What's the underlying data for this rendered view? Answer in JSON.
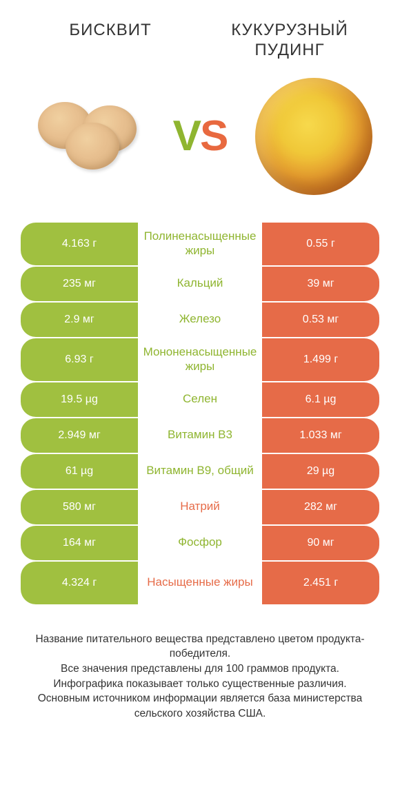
{
  "header": {
    "left_title": "БИСКВИТ",
    "right_title": "КУКУРУЗНЫЙ ПУДИНГ",
    "vs_v": "V",
    "vs_s": "S"
  },
  "colors": {
    "green": "#a0c040",
    "red": "#e66b48",
    "mid_green": "#8fb530",
    "mid_red": "#e66b48"
  },
  "rows": [
    {
      "left": "4.163 г",
      "label": "Полиненасыщенные жиры",
      "right": "0.55 г",
      "winner": "left",
      "tall": true
    },
    {
      "left": "235 мг",
      "label": "Кальций",
      "right": "39 мг",
      "winner": "left",
      "tall": false
    },
    {
      "left": "2.9 мг",
      "label": "Железо",
      "right": "0.53 мг",
      "winner": "left",
      "tall": false
    },
    {
      "left": "6.93 г",
      "label": "Мононенасыщенные жиры",
      "right": "1.499 г",
      "winner": "left",
      "tall": true
    },
    {
      "left": "19.5 µg",
      "label": "Селен",
      "right": "6.1 µg",
      "winner": "left",
      "tall": false
    },
    {
      "left": "2.949 мг",
      "label": "Витамин B3",
      "right": "1.033 мг",
      "winner": "left",
      "tall": false
    },
    {
      "left": "61 µg",
      "label": "Витамин B9, общий",
      "right": "29 µg",
      "winner": "left",
      "tall": false
    },
    {
      "left": "580 мг",
      "label": "Натрий",
      "right": "282 мг",
      "winner": "right",
      "tall": false
    },
    {
      "left": "164 мг",
      "label": "Фосфор",
      "right": "90 мг",
      "winner": "left",
      "tall": false
    },
    {
      "left": "4.324 г",
      "label": "Насыщенные жиры",
      "right": "2.451 г",
      "winner": "right",
      "tall": true
    }
  ],
  "footer": {
    "line1": "Название питательного вещества представлено цветом продукта-победителя.",
    "line2": "Все значения представлены для 100 граммов продукта.",
    "line3": "Инфографика показывает только существенные различия.",
    "line4": "Основным источником информации является база министерства сельского хозяйства США."
  }
}
